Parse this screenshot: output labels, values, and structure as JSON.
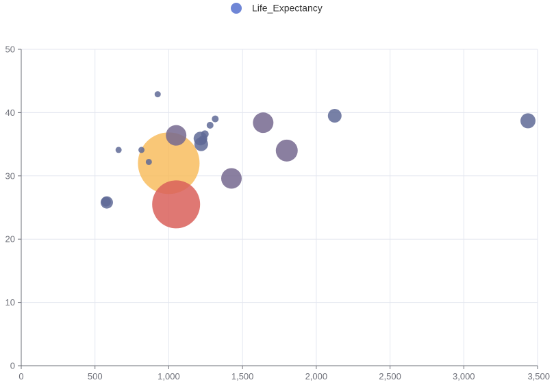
{
  "legend": {
    "label": "Life_Expectancy",
    "color": "#6f86d6"
  },
  "chart_data": {
    "type": "scatter",
    "xlim": [
      0,
      3500
    ],
    "ylim": [
      0,
      50
    ],
    "x_ticks": [
      0,
      500,
      1000,
      1500,
      2000,
      2500,
      3000,
      3500
    ],
    "x_tick_labels": [
      "0",
      "500",
      "1,000",
      "1,500",
      "2,000",
      "2,500",
      "3,000",
      "3,500"
    ],
    "y_ticks": [
      0,
      10,
      20,
      30,
      40,
      50
    ],
    "y_tick_labels": [
      "0",
      "10",
      "20",
      "30",
      "40",
      "50"
    ],
    "grid": true,
    "legend_position": "top-center",
    "colors": {
      "base": "#5f6a96",
      "purple": "#76698f",
      "orange": "#f7b955",
      "red": "#d9605a",
      "grid": "#e3e6ef",
      "axis": "#6e7079",
      "tick_label": "#6e7079"
    },
    "series": [
      {
        "name": "Life_Expectancy",
        "points": [
          {
            "x": 1000,
            "y": 32.0,
            "size": 90,
            "color": "orange"
          },
          {
            "x": 1050,
            "y": 25.5,
            "size": 70,
            "color": "red"
          },
          {
            "x": 580,
            "y": 25.8,
            "size": 18,
            "color": "base"
          },
          {
            "x": 575,
            "y": 25.9,
            "size": 14,
            "color": "base"
          },
          {
            "x": 660,
            "y": 34.1,
            "size": 9,
            "color": "base"
          },
          {
            "x": 815,
            "y": 34.1,
            "size": 9,
            "color": "base"
          },
          {
            "x": 865,
            "y": 32.2,
            "size": 9,
            "color": "base"
          },
          {
            "x": 925,
            "y": 42.9,
            "size": 9,
            "color": "base"
          },
          {
            "x": 1050,
            "y": 36.4,
            "size": 30,
            "color": "purple"
          },
          {
            "x": 1215,
            "y": 35.9,
            "size": 20,
            "color": "base"
          },
          {
            "x": 1220,
            "y": 35.0,
            "size": 20,
            "color": "base"
          },
          {
            "x": 1230,
            "y": 35.7,
            "size": 12,
            "color": "base"
          },
          {
            "x": 1245,
            "y": 36.6,
            "size": 11,
            "color": "base"
          },
          {
            "x": 1280,
            "y": 38.0,
            "size": 10,
            "color": "base"
          },
          {
            "x": 1315,
            "y": 39.0,
            "size": 10,
            "color": "base"
          },
          {
            "x": 1425,
            "y": 29.6,
            "size": 30,
            "color": "purple"
          },
          {
            "x": 1640,
            "y": 38.4,
            "size": 30,
            "color": "purple"
          },
          {
            "x": 1800,
            "y": 34.0,
            "size": 32,
            "color": "purple"
          },
          {
            "x": 2125,
            "y": 39.5,
            "size": 20,
            "color": "base"
          },
          {
            "x": 3435,
            "y": 38.7,
            "size": 22,
            "color": "base"
          }
        ]
      }
    ]
  }
}
